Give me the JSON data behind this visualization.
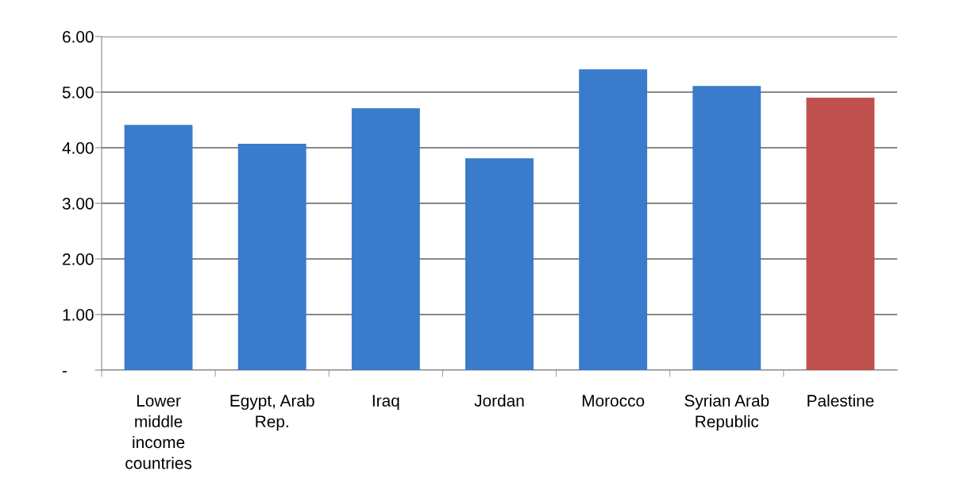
{
  "chart_data": {
    "type": "bar",
    "categories": [
      "Lower\nmiddle\nincome\ncountries",
      "Egypt, Arab\nRep.",
      "Iraq",
      "Jordan",
      "Morocco",
      "Syrian Arab\nRepublic",
      "Palestine"
    ],
    "values": [
      4.41,
      4.07,
      4.71,
      3.81,
      5.41,
      5.11,
      4.9
    ],
    "colors": [
      "#3a7bcb",
      "#3a7bcb",
      "#3a7bcb",
      "#3a7bcb",
      "#3a7bcb",
      "#3a7bcb",
      "#c0504d"
    ],
    "ylim": [
      0,
      6
    ],
    "yticks": [
      {
        "value": 0,
        "label": "-"
      },
      {
        "value": 1,
        "label": "1.00"
      },
      {
        "value": 2,
        "label": "2.00"
      },
      {
        "value": 3,
        "label": "3.00"
      },
      {
        "value": 4,
        "label": "4.00"
      },
      {
        "value": 5,
        "label": "5.00"
      },
      {
        "value": 6,
        "label": "6.00"
      }
    ],
    "grid": "y"
  }
}
